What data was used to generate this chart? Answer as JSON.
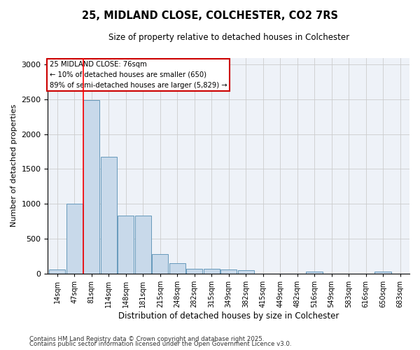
{
  "title1": "25, MIDLAND CLOSE, COLCHESTER, CO2 7RS",
  "title2": "Size of property relative to detached houses in Colchester",
  "xlabel": "Distribution of detached houses by size in Colchester",
  "ylabel": "Number of detached properties",
  "bins": [
    "14sqm",
    "47sqm",
    "81sqm",
    "114sqm",
    "148sqm",
    "181sqm",
    "215sqm",
    "248sqm",
    "282sqm",
    "315sqm",
    "349sqm",
    "382sqm",
    "415sqm",
    "449sqm",
    "482sqm",
    "516sqm",
    "549sqm",
    "583sqm",
    "616sqm",
    "650sqm",
    "683sqm"
  ],
  "values": [
    60,
    1000,
    2490,
    1680,
    830,
    830,
    280,
    150,
    70,
    70,
    55,
    50,
    0,
    0,
    0,
    30,
    0,
    0,
    0,
    30,
    0
  ],
  "bar_color": "#c8d9ea",
  "bar_edge_color": "#6699bb",
  "property_line_x": 1.5,
  "property_line_label": "25 MIDLAND CLOSE: 76sqm",
  "annotation_line1": "← 10% of detached houses are smaller (650)",
  "annotation_line2": "89% of semi-detached houses are larger (5,829) →",
  "annotation_box_edgecolor": "#cc0000",
  "ylim": [
    0,
    3100
  ],
  "yticks": [
    0,
    500,
    1000,
    1500,
    2000,
    2500,
    3000
  ],
  "footer1": "Contains HM Land Registry data © Crown copyright and database right 2025.",
  "footer2": "Contains public sector information licensed under the Open Government Licence v3.0.",
  "fig_width": 6.0,
  "fig_height": 5.0,
  "dpi": 100
}
